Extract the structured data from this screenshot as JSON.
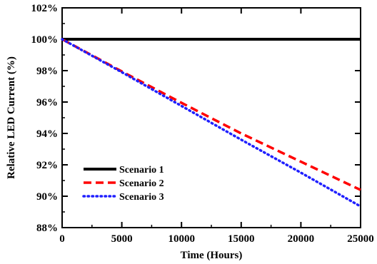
{
  "chart_data": {
    "type": "line",
    "xlabel": "Time (Hours)",
    "ylabel": "Relative LED Current (%)",
    "xlim": [
      0,
      25000
    ],
    "ylim": [
      88,
      102
    ],
    "x_ticks": [
      0,
      5000,
      10000,
      15000,
      20000,
      25000
    ],
    "x_tick_labels": [
      "0",
      "5000",
      "10000",
      "15000",
      "20000",
      "25000"
    ],
    "y_ticks": [
      88,
      90,
      92,
      94,
      96,
      98,
      100,
      102
    ],
    "y_tick_labels": [
      "88%",
      "90%",
      "92%",
      "94%",
      "96%",
      "98%",
      "100%",
      "102%"
    ],
    "grid": false,
    "legend_position": "bottom-left",
    "series": [
      {
        "name": "Scenario 1",
        "color": "#000000",
        "style": "solid",
        "x": [
          0,
          5000,
          10000,
          15000,
          20000,
          25000
        ],
        "y": [
          100,
          100,
          100,
          100,
          100,
          100
        ]
      },
      {
        "name": "Scenario 2",
        "color": "#ff0000",
        "style": "dashed",
        "x": [
          0,
          5000,
          10000,
          15000,
          20000,
          25000
        ],
        "y": [
          100,
          97.95,
          95.95,
          94.0,
          92.2,
          90.4
        ]
      },
      {
        "name": "Scenario 3",
        "color": "#1f1fff",
        "style": "dotted",
        "x": [
          0,
          5000,
          10000,
          15000,
          20000,
          25000
        ],
        "y": [
          100,
          97.9,
          95.75,
          93.6,
          91.5,
          89.35
        ]
      }
    ]
  }
}
